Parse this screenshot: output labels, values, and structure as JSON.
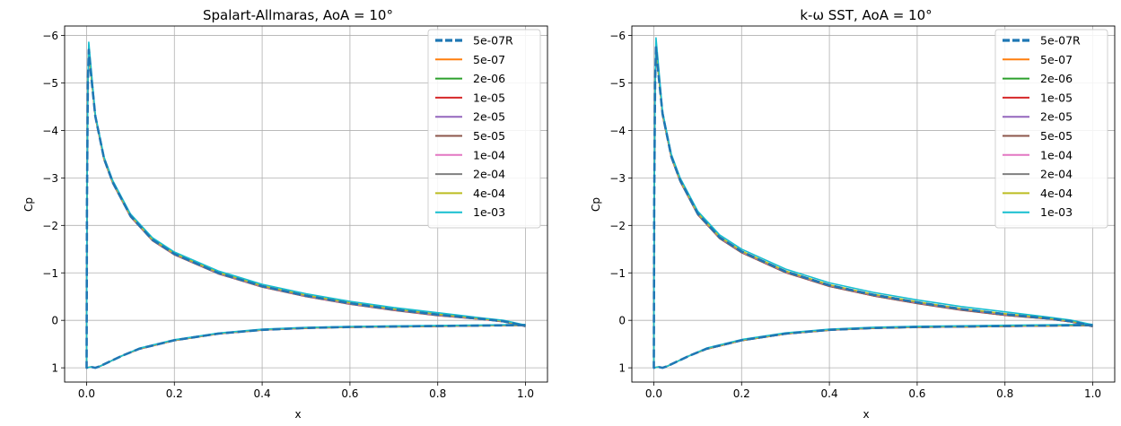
{
  "chart_data": [
    {
      "type": "line",
      "title": "Spalart-Allmaras, AoA = 10°",
      "xlabel": "x",
      "ylabel": "Cp",
      "xlim": [
        -0.05,
        1.05
      ],
      "ylim": [
        1.3,
        -6.2
      ],
      "y_inverted": true,
      "grid": true,
      "legend_position": "top-right",
      "xticks": [
        0.0,
        0.2,
        0.4,
        0.6,
        0.8,
        1.0
      ],
      "xtick_labels": [
        "0.0",
        "0.2",
        "0.4",
        "0.6",
        "0.8",
        "1.0"
      ],
      "yticks": [
        -6,
        -5,
        -4,
        -3,
        -2,
        -1,
        0,
        1
      ],
      "ytick_labels": [
        "−6",
        "−5",
        "−4",
        "−3",
        "−2",
        "−1",
        "0",
        "1"
      ],
      "upper_surface_x": [
        0.0,
        0.001,
        0.003,
        0.005,
        0.01,
        0.02,
        0.04,
        0.06,
        0.1,
        0.15,
        0.2,
        0.3,
        0.4,
        0.5,
        0.6,
        0.7,
        0.8,
        0.9,
        0.95,
        1.0
      ],
      "upper_surface_cp": [
        1.0,
        -2.5,
        -5.0,
        -5.7,
        -5.2,
        -4.3,
        -3.4,
        -2.9,
        -2.2,
        -1.7,
        -1.4,
        -1.0,
        -0.72,
        -0.52,
        -0.36,
        -0.23,
        -0.12,
        -0.03,
        0.02,
        0.12
      ],
      "lower_surface_x": [
        0.0,
        0.01,
        0.02,
        0.03,
        0.05,
        0.08,
        0.12,
        0.2,
        0.3,
        0.4,
        0.5,
        0.6,
        0.7,
        0.8,
        0.9,
        1.0
      ],
      "lower_surface_cp": [
        1.0,
        0.98,
        1.0,
        0.97,
        0.88,
        0.75,
        0.6,
        0.42,
        0.28,
        0.2,
        0.16,
        0.14,
        0.13,
        0.12,
        0.11,
        0.1
      ],
      "series": [
        {
          "name": "5e-07R",
          "color": "#1f77b4",
          "dashed": true,
          "offset": 0.0
        },
        {
          "name": "5e-07",
          "color": "#ff7f0e",
          "dashed": false,
          "offset": 0.01
        },
        {
          "name": "2e-06",
          "color": "#2ca02c",
          "dashed": false,
          "offset": 0.0
        },
        {
          "name": "1e-05",
          "color": "#d62728",
          "dashed": false,
          "offset": 0.015
        },
        {
          "name": "2e-05",
          "color": "#9467bd",
          "dashed": false,
          "offset": 0.01
        },
        {
          "name": "5e-05",
          "color": "#8c564b",
          "dashed": false,
          "offset": 0.02
        },
        {
          "name": "1e-04",
          "color": "#e377c2",
          "dashed": false,
          "offset": 0.01
        },
        {
          "name": "2e-04",
          "color": "#7f7f7f",
          "dashed": false,
          "offset": 0.0
        },
        {
          "name": "4e-04",
          "color": "#bcbd22",
          "dashed": false,
          "offset": -0.01
        },
        {
          "name": "1e-03",
          "color": "#17becf",
          "dashed": false,
          "offset": -0.04
        }
      ]
    },
    {
      "type": "line",
      "title": "k-ω SST, AoA = 10°",
      "xlabel": "x",
      "ylabel": "Cp",
      "xlim": [
        -0.05,
        1.05
      ],
      "ylim": [
        1.3,
        -6.2
      ],
      "y_inverted": true,
      "grid": true,
      "legend_position": "top-right",
      "xticks": [
        0.0,
        0.2,
        0.4,
        0.6,
        0.8,
        1.0
      ],
      "xtick_labels": [
        "0.0",
        "0.2",
        "0.4",
        "0.6",
        "0.8",
        "1.0"
      ],
      "yticks": [
        -6,
        -5,
        -4,
        -3,
        -2,
        -1,
        0,
        1
      ],
      "ytick_labels": [
        "−6",
        "−5",
        "−4",
        "−3",
        "−2",
        "−1",
        "0",
        "1"
      ],
      "upper_surface_x": [
        0.0,
        0.001,
        0.003,
        0.005,
        0.01,
        0.02,
        0.04,
        0.06,
        0.1,
        0.15,
        0.2,
        0.3,
        0.4,
        0.5,
        0.6,
        0.7,
        0.8,
        0.9,
        0.95,
        1.0
      ],
      "upper_surface_cp": [
        1.0,
        -2.5,
        -5.0,
        -5.75,
        -5.25,
        -4.35,
        -3.45,
        -2.95,
        -2.25,
        -1.75,
        -1.45,
        -1.03,
        -0.74,
        -0.54,
        -0.38,
        -0.24,
        -0.13,
        -0.04,
        0.02,
        0.12
      ],
      "lower_surface_x": [
        0.0,
        0.01,
        0.02,
        0.03,
        0.05,
        0.08,
        0.12,
        0.2,
        0.3,
        0.4,
        0.5,
        0.6,
        0.7,
        0.8,
        0.9,
        1.0
      ],
      "lower_surface_cp": [
        1.0,
        0.98,
        1.0,
        0.97,
        0.88,
        0.75,
        0.6,
        0.42,
        0.28,
        0.2,
        0.16,
        0.14,
        0.13,
        0.12,
        0.11,
        0.1
      ],
      "series": [
        {
          "name": "5e-07R",
          "color": "#1f77b4",
          "dashed": true,
          "offset": 0.0
        },
        {
          "name": "5e-07",
          "color": "#ff7f0e",
          "dashed": false,
          "offset": 0.02
        },
        {
          "name": "2e-06",
          "color": "#2ca02c",
          "dashed": false,
          "offset": 0.01
        },
        {
          "name": "1e-05",
          "color": "#d62728",
          "dashed": false,
          "offset": 0.02
        },
        {
          "name": "2e-05",
          "color": "#9467bd",
          "dashed": false,
          "offset": 0.015
        },
        {
          "name": "5e-05",
          "color": "#8c564b",
          "dashed": false,
          "offset": 0.025
        },
        {
          "name": "1e-04",
          "color": "#e377c2",
          "dashed": false,
          "offset": 0.01
        },
        {
          "name": "2e-04",
          "color": "#7f7f7f",
          "dashed": false,
          "offset": 0.0
        },
        {
          "name": "4e-04",
          "color": "#bcbd22",
          "dashed": false,
          "offset": -0.01
        },
        {
          "name": "1e-03",
          "color": "#17becf",
          "dashed": false,
          "offset": -0.05
        }
      ]
    }
  ]
}
